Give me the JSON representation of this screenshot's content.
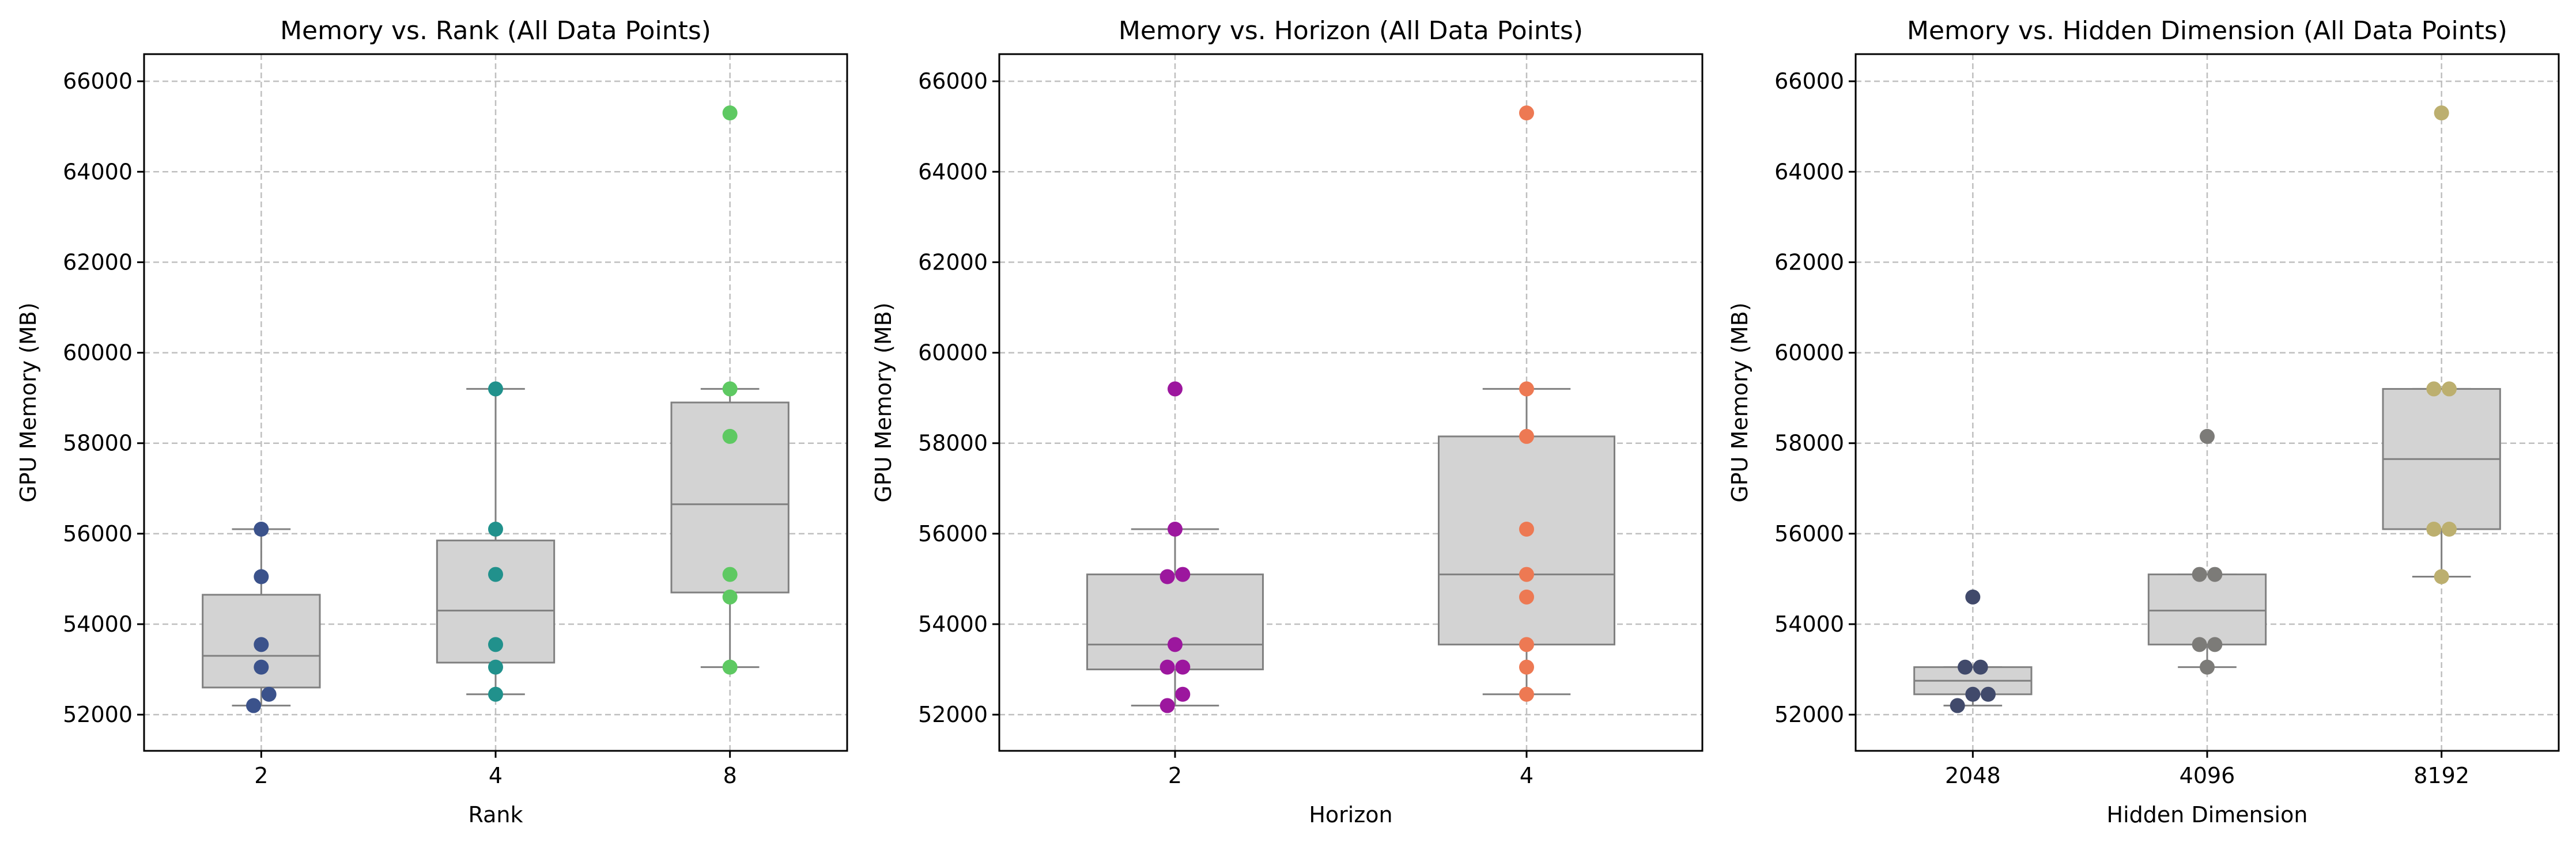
{
  "chart_data": [
    {
      "type": "box+swarm",
      "title": "Memory vs. Rank (All Data Points)",
      "xlabel": "Rank",
      "ylabel": "GPU Memory (MB)",
      "categories": [
        "2",
        "4",
        "8"
      ],
      "ylim": [
        51200,
        66600
      ],
      "yticks": [
        52000,
        54000,
        56000,
        58000,
        60000,
        62000,
        64000,
        66000
      ],
      "grid": true,
      "boxes": [
        {
          "category": "2",
          "whisker_low": 52200,
          "q1": 52600,
          "median": 53300,
          "q3": 54650,
          "whisker_high": 56100
        },
        {
          "category": "4",
          "whisker_low": 52450,
          "q1": 53150,
          "median": 54300,
          "q3": 55850,
          "whisker_high": 59200
        },
        {
          "category": "8",
          "whisker_low": 53050,
          "q1": 54700,
          "median": 56650,
          "q3": 58900,
          "whisker_high": 59200
        }
      ],
      "points": [
        {
          "category": "2",
          "values": [
            52200,
            52450,
            53050,
            53550,
            55050,
            56100
          ],
          "color": "#3b528b"
        },
        {
          "category": "4",
          "values": [
            52450,
            53050,
            53550,
            55100,
            56100,
            59200
          ],
          "color": "#21918c"
        },
        {
          "category": "8",
          "values": [
            53050,
            54600,
            55100,
            58150,
            59200,
            65300
          ],
          "color": "#5ec962"
        }
      ]
    },
    {
      "type": "box+swarm",
      "title": "Memory vs. Horizon (All Data Points)",
      "xlabel": "Horizon",
      "ylabel": "GPU Memory (MB)",
      "categories": [
        "2",
        "4"
      ],
      "ylim": [
        51200,
        66600
      ],
      "yticks": [
        52000,
        54000,
        56000,
        58000,
        60000,
        62000,
        64000,
        66000
      ],
      "grid": true,
      "boxes": [
        {
          "category": "2",
          "whisker_low": 52200,
          "q1": 53000,
          "median": 53550,
          "q3": 55100,
          "whisker_high": 56100
        },
        {
          "category": "4",
          "whisker_low": 52450,
          "q1": 53550,
          "median": 55100,
          "q3": 58150,
          "whisker_high": 59200
        }
      ],
      "points": [
        {
          "category": "2",
          "values": [
            52200,
            52450,
            53050,
            53050,
            53550,
            55050,
            55100,
            56100,
            59200
          ],
          "color": "#9c179e"
        },
        {
          "category": "4",
          "values": [
            52450,
            53050,
            53550,
            54600,
            55100,
            56100,
            58150,
            59200,
            65300
          ],
          "color": "#ed7953"
        }
      ]
    },
    {
      "type": "box+swarm",
      "title": "Memory vs. Hidden Dimension (All Data Points)",
      "xlabel": "Hidden Dimension",
      "ylabel": "GPU Memory (MB)",
      "categories": [
        "2048",
        "4096",
        "8192"
      ],
      "ylim": [
        51200,
        66600
      ],
      "yticks": [
        52000,
        54000,
        56000,
        58000,
        60000,
        62000,
        64000,
        66000
      ],
      "grid": true,
      "boxes": [
        {
          "category": "2048",
          "whisker_low": 52200,
          "q1": 52450,
          "median": 52750,
          "q3": 53050,
          "whisker_high": 53050
        },
        {
          "category": "4096",
          "whisker_low": 53050,
          "q1": 53550,
          "median": 54300,
          "q3": 55100,
          "whisker_high": 55100
        },
        {
          "category": "8192",
          "whisker_low": 55050,
          "q1": 56100,
          "median": 57650,
          "q3": 59200,
          "whisker_high": 59200
        }
      ],
      "points": [
        {
          "category": "2048",
          "values": [
            52200,
            52450,
            52450,
            53050,
            53050,
            54600
          ],
          "color": "#414a6b"
        },
        {
          "category": "4096",
          "values": [
            53050,
            53550,
            53550,
            55100,
            55100,
            58150
          ],
          "color": "#7c7b78"
        },
        {
          "category": "8192",
          "values": [
            55050,
            56100,
            56100,
            59200,
            59200,
            65300
          ],
          "color": "#bcaf6f"
        }
      ]
    }
  ]
}
